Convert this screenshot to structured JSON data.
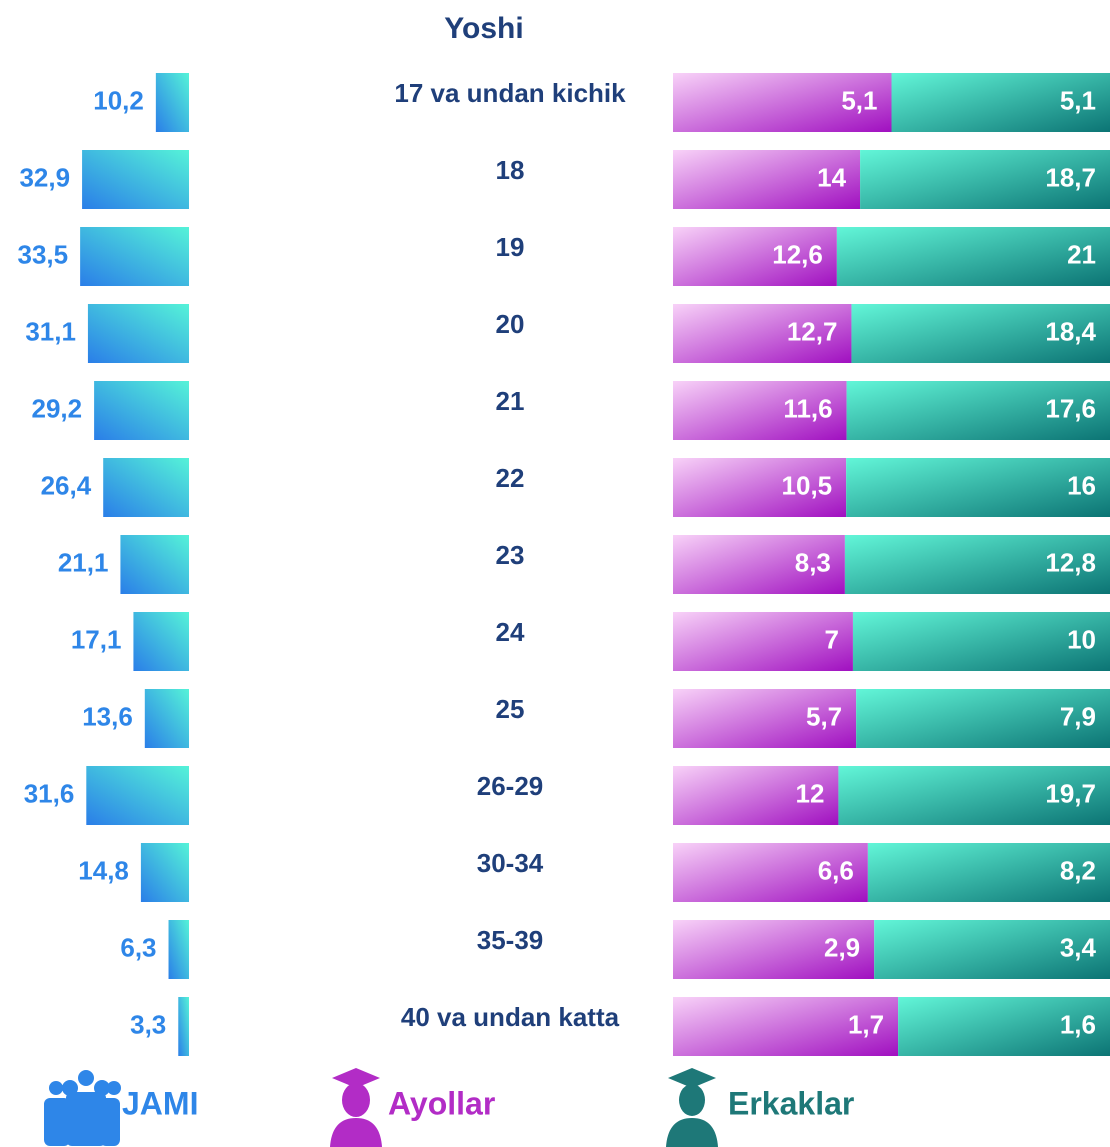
{
  "chart_data": {
    "type": "bar",
    "title": "Yoshi",
    "categories": [
      "17 va undan kichik",
      "18",
      "19",
      "20",
      "21",
      "22",
      "23",
      "24",
      "25",
      "26-29",
      "30-34",
      "35-39",
      "40 va undan katta"
    ],
    "series": [
      {
        "name": "JAMI",
        "color": "#2e86e8",
        "values": [
          10.2,
          32.9,
          33.5,
          31.1,
          29.2,
          26.4,
          21.1,
          17.1,
          13.6,
          31.6,
          14.8,
          6.3,
          3.3
        ],
        "value_labels": [
          "10,2",
          "32,9",
          "33,5",
          "31,1",
          "29,2",
          "26,4",
          "21,1",
          "17,1",
          "13,6",
          "31,6",
          "14,8",
          "6,3",
          "3,3"
        ]
      },
      {
        "name": "Ayollar",
        "color": "#b22cc6",
        "values": [
          5.1,
          14,
          12.6,
          12.7,
          11.6,
          10.5,
          8.3,
          7,
          5.7,
          12,
          6.6,
          2.9,
          1.7
        ],
        "value_labels": [
          "5,1",
          "14",
          "12,6",
          "12,7",
          "11,6",
          "10,5",
          "8,3",
          "7",
          "5,7",
          "12",
          "6,6",
          "2,9",
          "1,7"
        ]
      },
      {
        "name": "Erkaklar",
        "color": "#1e7878",
        "values": [
          5.1,
          18.7,
          21,
          18.4,
          17.6,
          16,
          12.8,
          10,
          7.9,
          19.7,
          8.2,
          3.4,
          1.6
        ],
        "value_labels": [
          "5,1",
          "18,7",
          "21",
          "18,4",
          "17,6",
          "16",
          "12,8",
          "10",
          "7,9",
          "19,7",
          "8,2",
          "3,4",
          "1,6"
        ]
      }
    ]
  }
}
